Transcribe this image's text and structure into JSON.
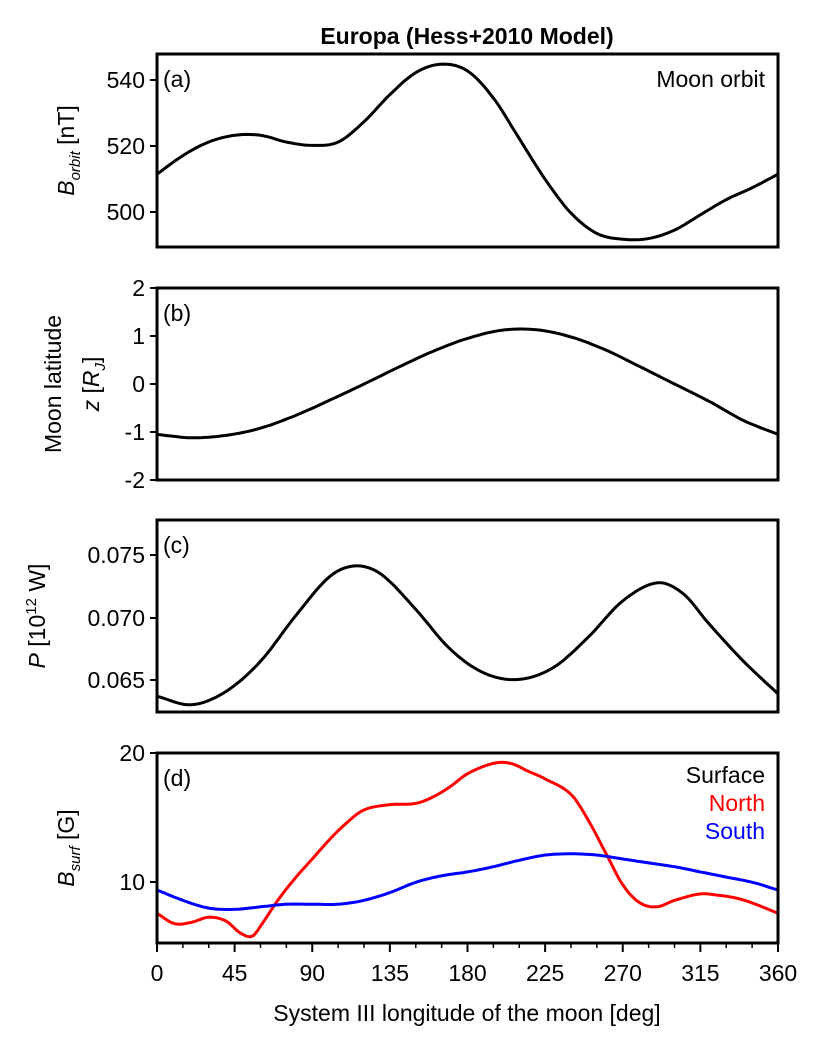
{
  "chart_data": {
    "title": "Europa (Hess+2010 Model)",
    "xlabel": "System III longitude of the moon [deg]",
    "xlim": [
      0,
      360
    ],
    "xticks": [
      "0",
      "45",
      "90",
      "135",
      "180",
      "225",
      "270",
      "315",
      "360"
    ],
    "panels": [
      {
        "id": "a",
        "panel_label": "(a)",
        "type": "line",
        "ylabel": "B_orbit [nT]",
        "ylabel_main": "B",
        "ylabel_sub": "orbit",
        "ylabel_rest": " [nT]",
        "ylim": [
          490,
          547
        ],
        "yticks": [
          "500",
          "520",
          "540"
        ],
        "annotation": "Moon orbit",
        "series": [
          {
            "color": "#000000",
            "x": [
              0,
              15,
              30,
              45,
              60,
              75,
              90,
              105,
              120,
              135,
              150,
              165,
              180,
              195,
              210,
              225,
              240,
              255,
              270,
              285,
              300,
              315,
              330,
              345,
              360
            ],
            "y": [
              511.5,
              517,
              521,
              523,
              523,
              521,
              520,
              521,
              527,
              535,
              541.5,
              544,
              542,
              534,
              522,
              510,
              500,
              494,
              492.3,
              492.5,
              495,
              499.5,
              504,
              507.5,
              511.5
            ]
          }
        ]
      },
      {
        "id": "b",
        "panel_label": "(b)",
        "type": "line",
        "ylabel_line1": "Moon latitude",
        "ylabel_line2": "z [R_J]",
        "ylim": [
          -2,
          2
        ],
        "yticks": [
          "-2",
          "-1",
          "0",
          "1",
          "2"
        ],
        "series": [
          {
            "color": "#000000",
            "x": [
              0,
              20,
              40,
              60,
              80,
              100,
              120,
              140,
              160,
              180,
              200,
              220,
              240,
              260,
              280,
              300,
              320,
              340,
              360
            ],
            "y": [
              -1.05,
              -1.12,
              -1.07,
              -0.92,
              -0.66,
              -0.34,
              0.0,
              0.35,
              0.68,
              0.95,
              1.12,
              1.13,
              0.98,
              0.71,
              0.36,
              0.0,
              -0.36,
              -0.76,
              -1.05
            ]
          }
        ]
      },
      {
        "id": "c",
        "panel_label": "(c)",
        "type": "line",
        "ylabel": "P [10^12 W]",
        "ylabel_pre": "P [10",
        "ylabel_sup": "12",
        "ylabel_post": " W]",
        "ylim": [
          0.0623,
          0.0782
        ],
        "yticks": [
          "0.065",
          "0.070",
          "0.075"
        ],
        "series": [
          {
            "color": "#000000",
            "x": [
              0,
              20,
              40,
              60,
              80,
              100,
              115,
              130,
              150,
              170,
              190,
              210,
              230,
              250,
              270,
              290,
              305,
              320,
              340,
              360
            ],
            "y": [
              0.0636,
              0.0629,
              0.064,
              0.0665,
              0.0702,
              0.0735,
              0.0744,
              0.0737,
              0.0708,
              0.0675,
              0.0655,
              0.065,
              0.066,
              0.0685,
              0.0715,
              0.073,
              0.0721,
              0.0696,
              0.0665,
              0.0638
            ]
          }
        ]
      },
      {
        "id": "d",
        "panel_label": "(d)",
        "type": "line",
        "ylabel": "B_surf [G]",
        "ylabel_main": "B",
        "ylabel_sub": "surf",
        "ylabel_rest": " [G]",
        "ylim": [
          5.5,
          20.2
        ],
        "yticks": [
          "10",
          "20"
        ],
        "legend_title": "Surface",
        "legend_placement": "top-right",
        "series": [
          {
            "name": "North",
            "color": "#ff0000",
            "x": [
              0,
              10,
              20,
              30,
              40,
              48,
              55,
              60,
              70,
              80,
              90,
              100,
              110,
              120,
              135,
              150,
              160,
              170,
              180,
              195,
              205,
              215,
              225,
              240,
              250,
              260,
              270,
              280,
              290,
              300,
              315,
              325,
              335,
              345,
              360
            ],
            "y": [
              7.8,
              7.0,
              7.1,
              7.5,
              7.2,
              6.3,
              6.0,
              6.8,
              8.8,
              10.5,
              12.0,
              13.5,
              14.8,
              15.8,
              16.2,
              16.3,
              16.8,
              17.6,
              18.6,
              19.4,
              19.4,
              18.8,
              18.2,
              17.0,
              15.0,
              12.5,
              10.0,
              8.6,
              8.3,
              8.8,
              9.3,
              9.2,
              9.0,
              8.6,
              7.8
            ]
          },
          {
            "name": "South",
            "color": "#0000ff",
            "x": [
              0,
              15,
              30,
              45,
              60,
              75,
              90,
              105,
              120,
              135,
              150,
              165,
              180,
              195,
              210,
              225,
              240,
              255,
              270,
              285,
              300,
              315,
              330,
              345,
              360
            ],
            "y": [
              9.6,
              8.8,
              8.2,
              8.1,
              8.3,
              8.5,
              8.5,
              8.5,
              8.8,
              9.4,
              10.2,
              10.7,
              11.0,
              11.4,
              11.9,
              12.3,
              12.4,
              12.3,
              12.0,
              11.7,
              11.4,
              11.0,
              10.6,
              10.2,
              9.6
            ]
          }
        ]
      }
    ]
  }
}
